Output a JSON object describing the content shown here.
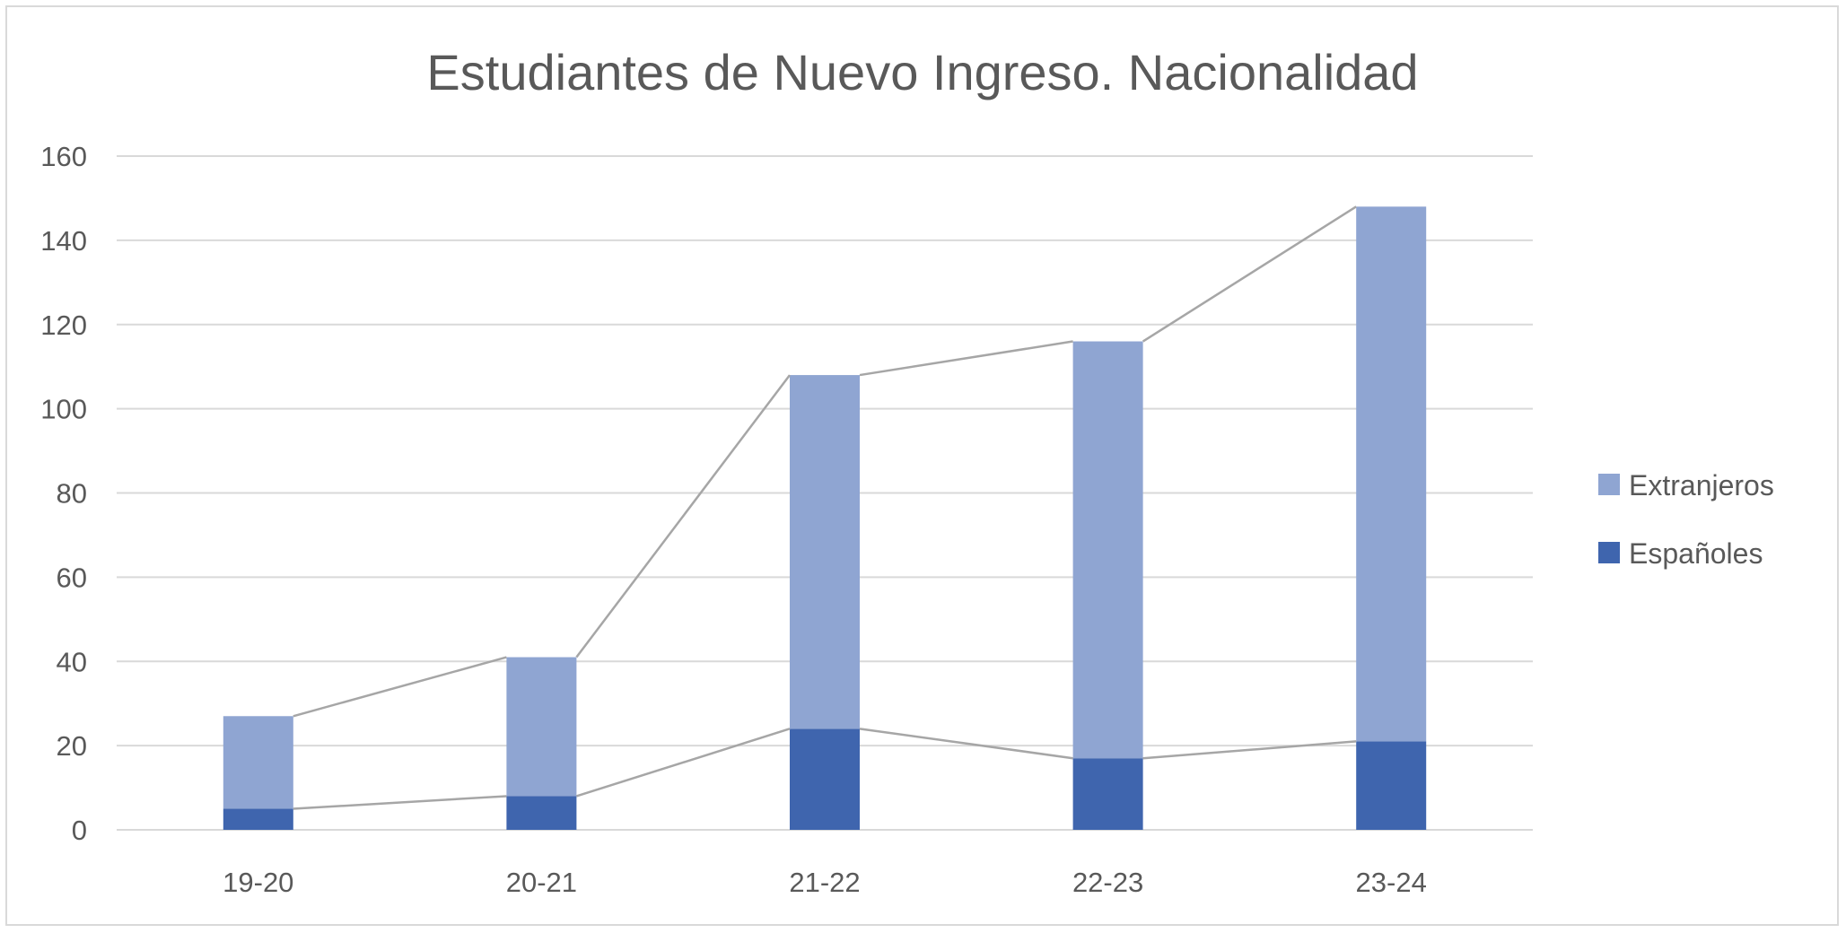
{
  "chart_data": {
    "type": "bar",
    "stacked": true,
    "title": "Estudiantes de Nuevo Ingreso. Nacionalidad",
    "xlabel": "",
    "ylabel": "",
    "categories": [
      "19-20",
      "20-21",
      "21-22",
      "22-23",
      "23-24"
    ],
    "series": [
      {
        "name": "Españoles",
        "values": [
          5,
          8,
          24,
          17,
          21
        ],
        "color": "#3f65ae"
      },
      {
        "name": "Extranjeros",
        "values": [
          22,
          33,
          84,
          99,
          127
        ],
        "color": "#8fa5d2"
      }
    ],
    "totals": [
      27,
      41,
      108,
      116,
      148
    ],
    "ylim": [
      0,
      160
    ],
    "yticks": [
      "0",
      "20",
      "40",
      "60",
      "80",
      "100",
      "120",
      "140",
      "160"
    ],
    "grid": true,
    "series_lines": true,
    "line_color": "#a6a6a6",
    "grid_color": "#d9d9d9",
    "legend": {
      "position": "right",
      "entries": [
        "Extranjeros",
        "Españoles"
      ]
    }
  }
}
